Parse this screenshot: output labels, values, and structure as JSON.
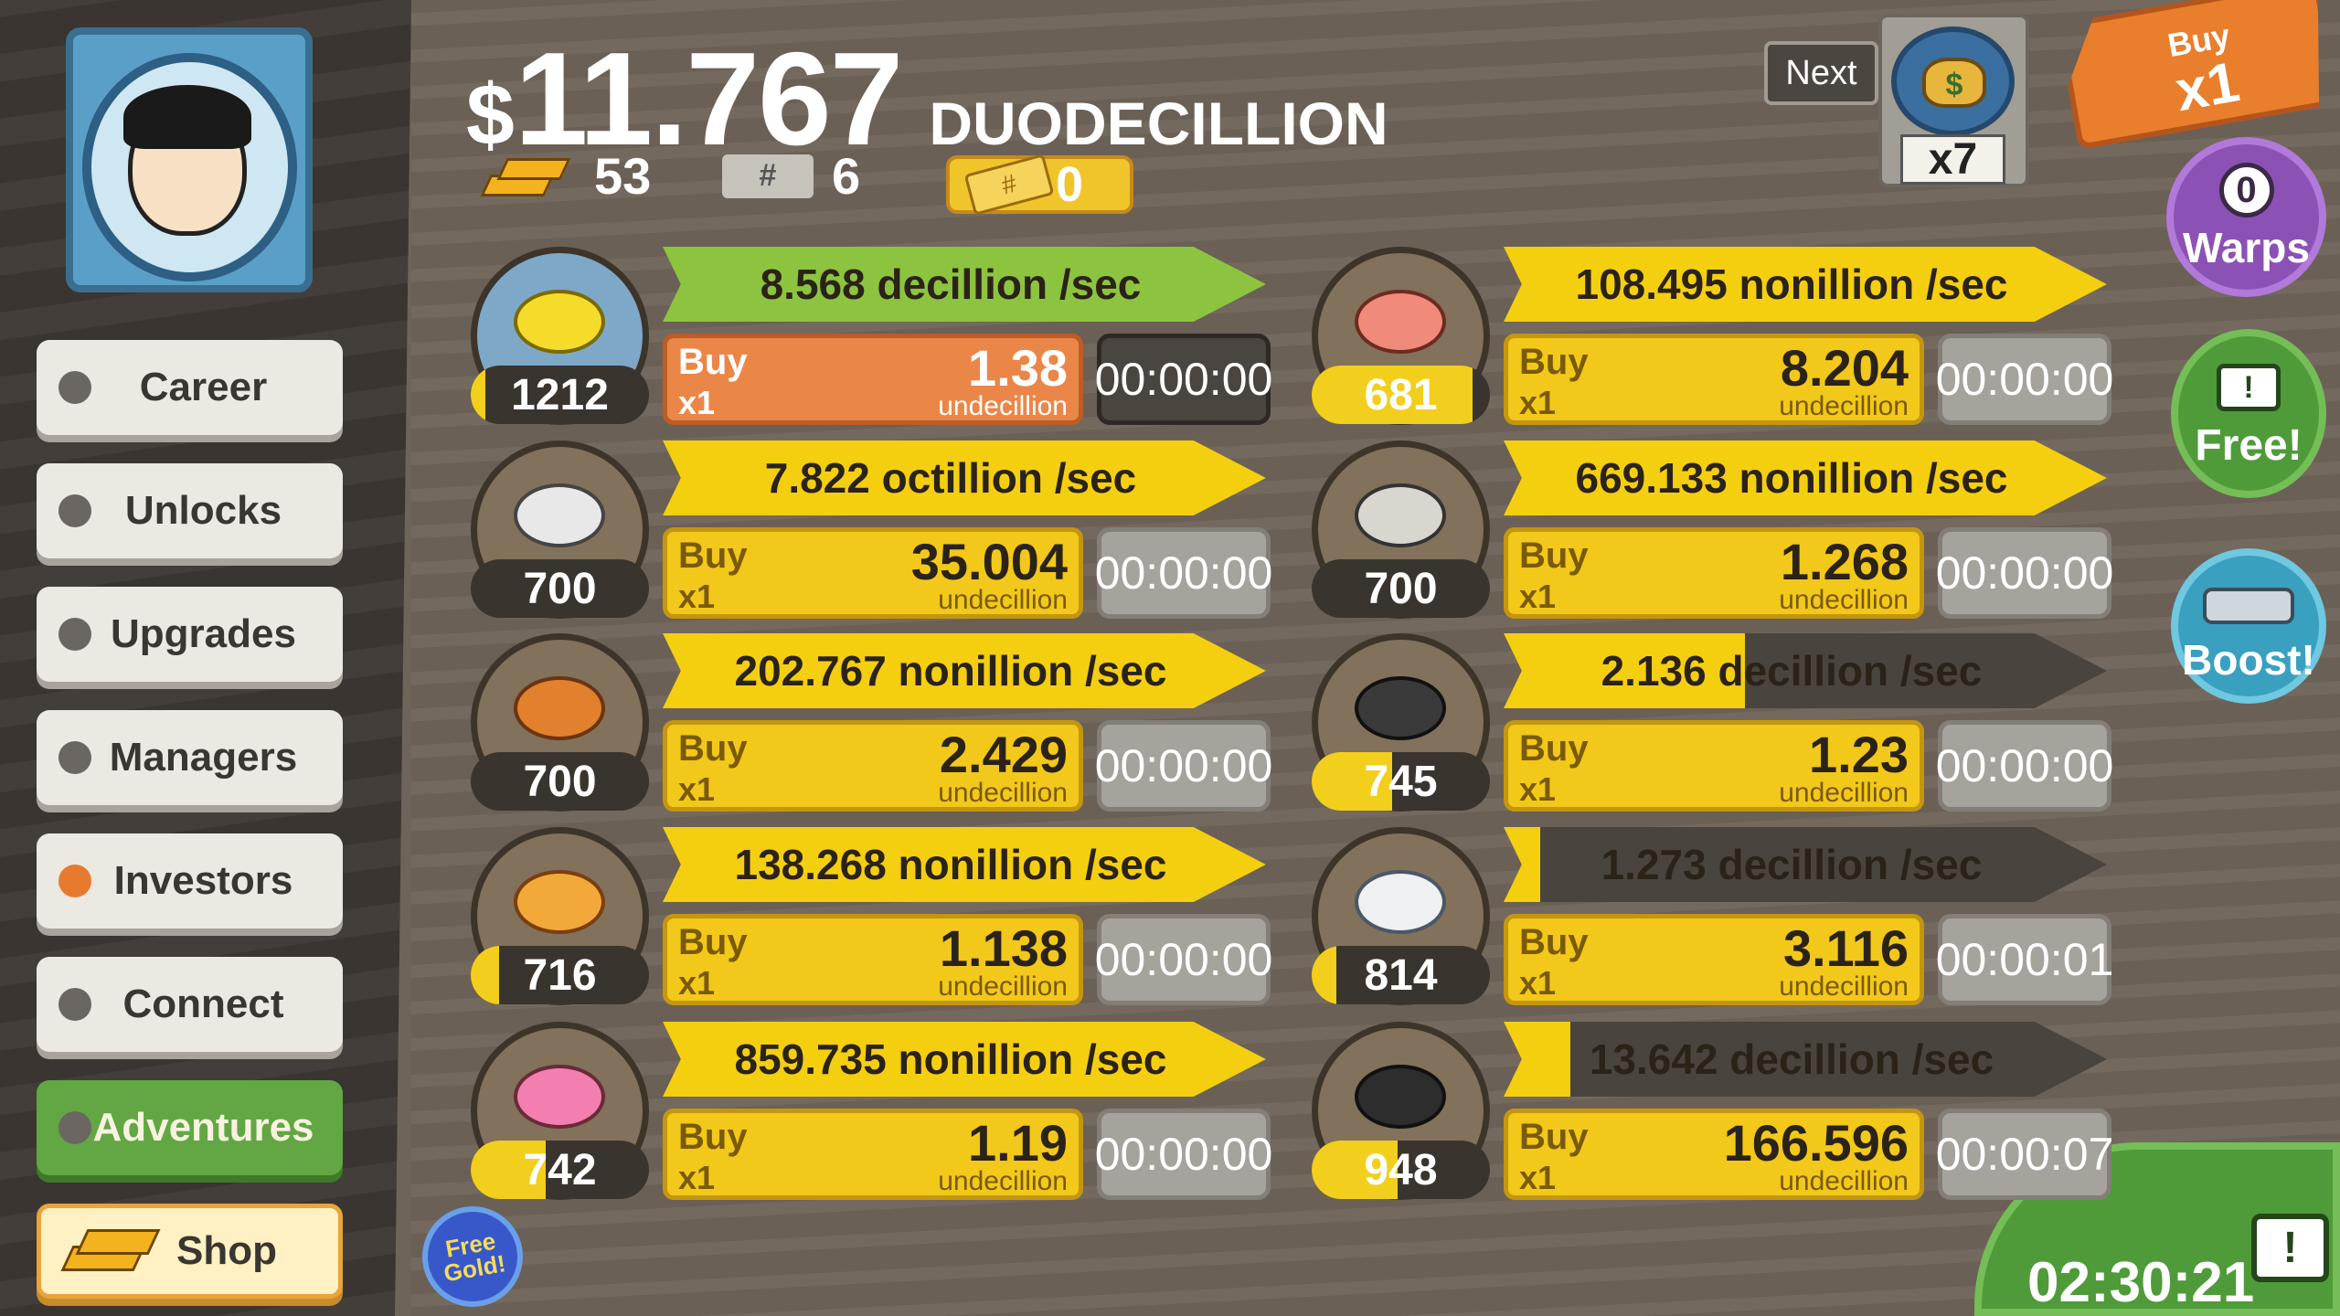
{
  "header": {
    "currency_symbol": "$",
    "money_amount": "11.767",
    "money_unit": "DUODECILLION",
    "gold_count": "53",
    "mega_count": "6",
    "ticket_count": "0"
  },
  "sidebar": {
    "items": [
      {
        "label": "Career",
        "active": false
      },
      {
        "label": "Unlocks",
        "active": false
      },
      {
        "label": "Upgrades",
        "active": false
      },
      {
        "label": "Managers",
        "active": false
      },
      {
        "label": "Investors",
        "active": true
      },
      {
        "label": "Connect",
        "active": false
      },
      {
        "label": "Adventures",
        "active": false
      },
      {
        "label": "Shop",
        "active": false
      }
    ],
    "free_gold_line1": "Free",
    "free_gold_line2": "Gold!"
  },
  "top_right": {
    "next_label": "Next",
    "next_multiplier": "x7",
    "buy_label": "Buy",
    "buy_mult": "x1",
    "warps_count": "0",
    "warps_label": "Warps",
    "free_label": "Free!",
    "boost_label": "Boost!",
    "timer": "02:30:21"
  },
  "businesses": [
    {
      "icon": "lemon-icon",
      "count": "1212",
      "count_progress": 0.08,
      "rate": "8.568 decillion /sec",
      "rate_progress": 1.0,
      "rate_color": "green",
      "buy_label": "Buy",
      "buy_mult": "x1",
      "cost": "1.38",
      "cost_unit": "undecillion",
      "buy_style": "orange",
      "time": "00:00:00",
      "time_style": "dark"
    },
    {
      "icon": "shrimp-icon",
      "count": "681",
      "count_progress": 0.9,
      "rate": "108.495 nonillion /sec",
      "rate_progress": 1.0,
      "rate_color": "yellow",
      "buy_label": "Buy",
      "buy_mult": "x1",
      "cost": "8.204",
      "cost_unit": "undecillion",
      "buy_style": "yellow",
      "time": "00:00:00",
      "time_style": "gray"
    },
    {
      "icon": "newspaper-icon",
      "count": "700",
      "count_progress": 0,
      "rate": "7.822 octillion /sec",
      "rate_progress": 1.0,
      "rate_color": "yellow",
      "buy_label": "Buy",
      "buy_mult": "x1",
      "cost": "35.004",
      "cost_unit": "undecillion",
      "buy_style": "yellow",
      "time": "00:00:00",
      "time_style": "gray"
    },
    {
      "icon": "hockey-icon",
      "count": "700",
      "count_progress": 0,
      "rate": "669.133 nonillion /sec",
      "rate_progress": 1.0,
      "rate_color": "yellow",
      "buy_label": "Buy",
      "buy_mult": "x1",
      "cost": "1.268",
      "cost_unit": "undecillion",
      "buy_style": "yellow",
      "time": "00:00:00",
      "time_style": "gray"
    },
    {
      "icon": "car-wash-icon",
      "count": "700",
      "count_progress": 0,
      "rate": "202.767 nonillion /sec",
      "rate_progress": 1.0,
      "rate_color": "yellow",
      "buy_label": "Buy",
      "buy_mult": "x1",
      "cost": "2.429",
      "cost_unit": "undecillion",
      "buy_style": "yellow",
      "time": "00:00:00",
      "time_style": "gray"
    },
    {
      "icon": "movie-camera-icon",
      "count": "745",
      "count_progress": 0.45,
      "rate": "2.136 decillion /sec",
      "rate_progress": 0.4,
      "rate_color": "yellow",
      "buy_label": "Buy",
      "buy_mult": "x1",
      "cost": "1.23",
      "cost_unit": "undecillion",
      "buy_style": "yellow",
      "time": "00:00:00",
      "time_style": "gray"
    },
    {
      "icon": "pizza-icon",
      "count": "716",
      "count_progress": 0.16,
      "rate": "138.268 nonillion /sec",
      "rate_progress": 1.0,
      "rate_color": "yellow",
      "buy_label": "Buy",
      "buy_mult": "x1",
      "cost": "1.138",
      "cost_unit": "undecillion",
      "buy_style": "yellow",
      "time": "00:00:00",
      "time_style": "gray"
    },
    {
      "icon": "bank-icon",
      "count": "814",
      "count_progress": 0.14,
      "rate": "1.273 decillion /sec",
      "rate_progress": 0.06,
      "rate_color": "yellow",
      "buy_label": "Buy",
      "buy_mult": "x1",
      "cost": "3.116",
      "cost_unit": "undecillion",
      "buy_style": "yellow",
      "time": "00:00:01",
      "time_style": "gray"
    },
    {
      "icon": "donut-icon",
      "count": "742",
      "count_progress": 0.42,
      "rate": "859.735 nonillion /sec",
      "rate_progress": 1.0,
      "rate_color": "yellow",
      "buy_label": "Buy",
      "buy_mult": "x1",
      "cost": "1.19",
      "cost_unit": "undecillion",
      "buy_style": "yellow",
      "time": "00:00:00",
      "time_style": "gray"
    },
    {
      "icon": "oil-rig-icon",
      "count": "948",
      "count_progress": 0.48,
      "rate": "13.642 decillion /sec",
      "rate_progress": 0.11,
      "rate_color": "yellow",
      "buy_label": "Buy",
      "buy_mult": "x1",
      "cost": "166.596",
      "cost_unit": "undecillion",
      "buy_style": "yellow",
      "time": "00:00:07",
      "time_style": "gray"
    }
  ],
  "colors": {
    "background": "#6f6459",
    "sidebar": "#3d3833",
    "yellow_bar": "#f4cf10",
    "green_bar": "#8cc440",
    "orange_buy": "#ea8748"
  }
}
